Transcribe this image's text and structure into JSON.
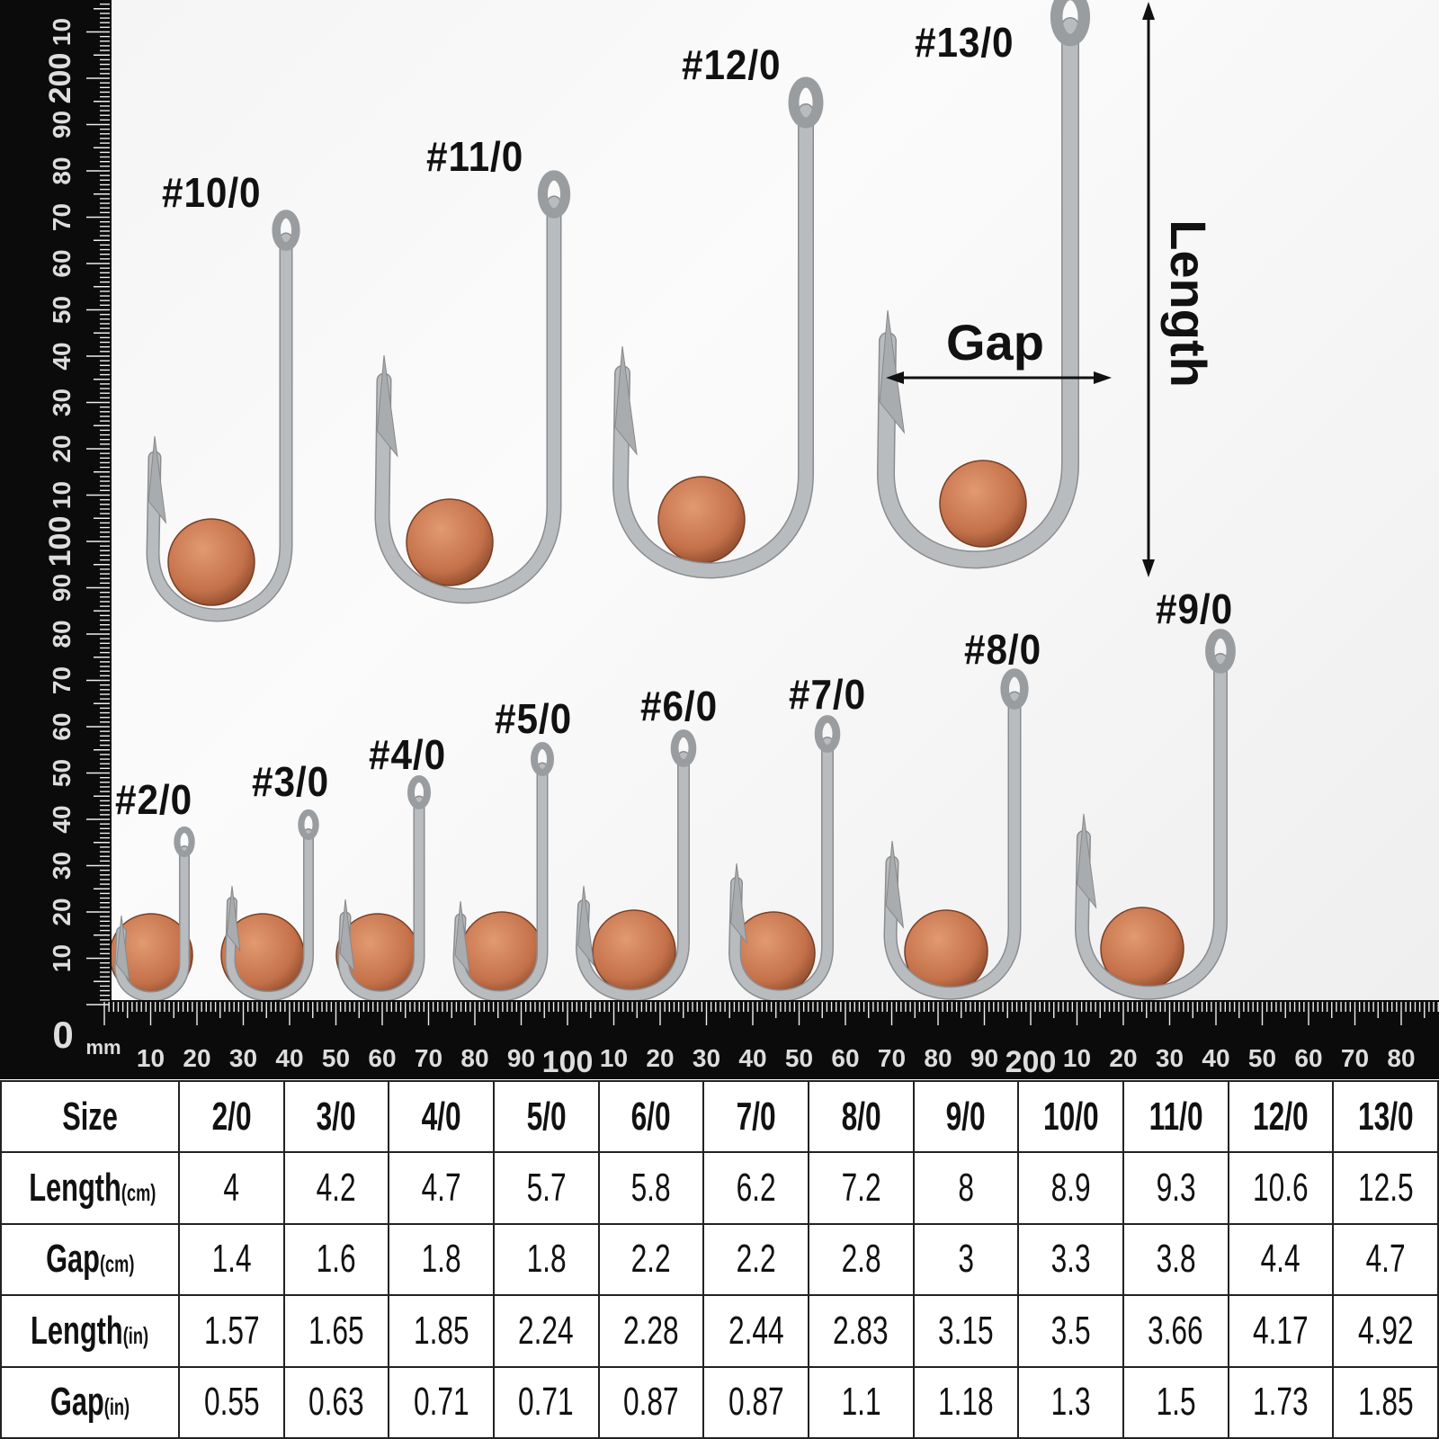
{
  "hooks": [
    {
      "size": "#2/0"
    },
    {
      "size": "#3/0"
    },
    {
      "size": "#4/0"
    },
    {
      "size": "#5/0"
    },
    {
      "size": "#6/0"
    },
    {
      "size": "#7/0"
    },
    {
      "size": "#8/0"
    },
    {
      "size": "#9/0"
    },
    {
      "size": "#10/0"
    },
    {
      "size": "#11/0"
    },
    {
      "size": "#12/0"
    },
    {
      "size": "#13/0"
    }
  ],
  "annotations": {
    "gap": "Gap",
    "length": "Length"
  },
  "ruler": {
    "unit": "mm",
    "zero": "0",
    "bottom_labels": [
      "10",
      "20",
      "30",
      "40",
      "50",
      "60",
      "70",
      "80",
      "90",
      "100",
      "10",
      "20",
      "30",
      "40",
      "50",
      "60",
      "70",
      "80",
      "90",
      "200",
      "10",
      "20",
      "30",
      "40",
      "50",
      "60",
      "70",
      "80"
    ],
    "left_labels": [
      "10",
      "20",
      "30",
      "40",
      "50",
      "60",
      "70",
      "80",
      "90",
      "100",
      "10",
      "20",
      "30",
      "40",
      "50",
      "60",
      "70",
      "80",
      "90",
      "200",
      "10"
    ]
  },
  "colors": {
    "ruler": "#0b0b0b",
    "steel": "#b9bcbf",
    "penny": "#c4714a"
  },
  "table": {
    "header": {
      "label": "Size",
      "values": [
        "2/0",
        "3/0",
        "4/0",
        "5/0",
        "6/0",
        "7/0",
        "8/0",
        "9/0",
        "10/0",
        "11/0",
        "12/0",
        "13/0"
      ]
    },
    "rows": [
      {
        "label": "Length",
        "unit": "(cm)",
        "values": [
          "4",
          "4.2",
          "4.7",
          "5.7",
          "5.8",
          "6.2",
          "7.2",
          "8",
          "8.9",
          "9.3",
          "10.6",
          "12.5"
        ]
      },
      {
        "label": "Gap",
        "unit": "(cm)",
        "values": [
          "1.4",
          "1.6",
          "1.8",
          "1.8",
          "2.2",
          "2.2",
          "2.8",
          "3",
          "3.3",
          "3.8",
          "4.4",
          "4.7"
        ]
      },
      {
        "label": "Length",
        "unit": "(in)",
        "values": [
          "1.57",
          "1.65",
          "1.85",
          "2.24",
          "2.28",
          "2.44",
          "2.83",
          "3.15",
          "3.5",
          "3.66",
          "4.17",
          "4.92"
        ]
      },
      {
        "label": "Gap",
        "unit": "(in)",
        "values": [
          "0.55",
          "0.63",
          "0.71",
          "0.71",
          "0.87",
          "0.87",
          "1.1",
          "1.18",
          "1.3",
          "1.5",
          "1.73",
          "1.85"
        ]
      }
    ]
  }
}
